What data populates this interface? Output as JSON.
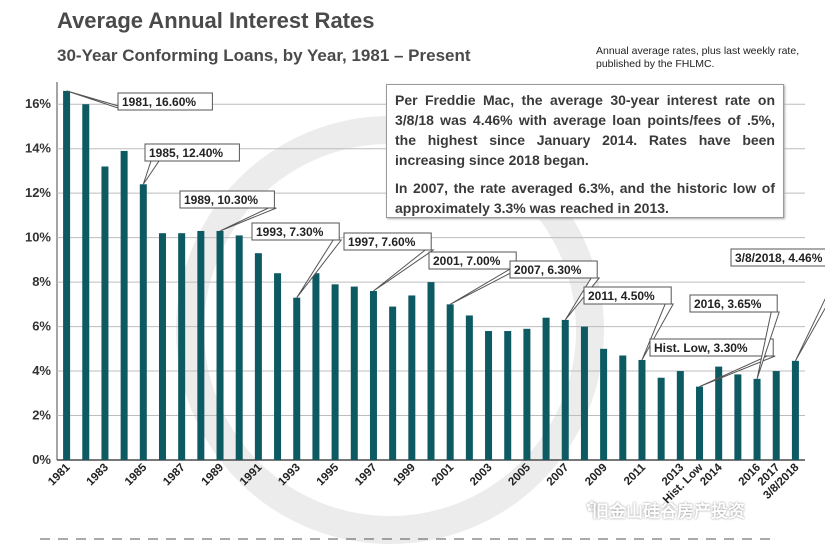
{
  "header": {
    "title": "Average Annual Interest Rates",
    "subtitle": "30-Year Conforming Loans, by Year, 1981 – Present",
    "note": "Annual average rates, plus last weekly rate, published by the FHLMC."
  },
  "info_box": {
    "para1": "Per Freddie Mac, the average 30-year interest rate on 3/8/18 was 4.46% with average loan points/fees of .5%, the highest since January 2014. Rates have been increasing since 2018 began.",
    "para2": "In 2007, the rate averaged 6.3%, and the historic low of approximately 3.3% was reached in 2013."
  },
  "watermark": "旧金山硅谷房产投资",
  "colors": {
    "bar": "#0d5a63",
    "bar_highlight": "#2f8d96",
    "grid": "#bdbdbd",
    "callout_border": "#555555"
  },
  "chart_data": {
    "type": "bar",
    "title": "Average Annual Interest Rates",
    "subtitle": "30-Year Conforming Loans, by Year, 1981 – Present",
    "xlabel": "",
    "ylabel": "",
    "ylim": [
      0,
      17
    ],
    "yticks": [
      "0%",
      "2%",
      "4%",
      "6%",
      "8%",
      "10%",
      "12%",
      "14%",
      "16%"
    ],
    "grid": true,
    "categories": [
      "1981",
      "1982",
      "1983",
      "1984",
      "1985",
      "1986",
      "1987",
      "1988",
      "1989",
      "1990",
      "1991",
      "1992",
      "1993",
      "1994",
      "1995",
      "1996",
      "1997",
      "1998",
      "1999",
      "2000",
      "2001",
      "2002",
      "2003",
      "2004",
      "2005",
      "2006",
      "2007",
      "2008",
      "2009",
      "2010",
      "2011",
      "2012",
      "2013",
      "Hist. Low",
      "2014",
      "2015",
      "2016",
      "2017",
      "3/8/2018"
    ],
    "xtick_labels": [
      "1981",
      "",
      "1983",
      "",
      "1985",
      "",
      "1987",
      "",
      "1989",
      "",
      "1991",
      "",
      "1993",
      "",
      "1995",
      "",
      "1997",
      "",
      "1999",
      "",
      "2001",
      "",
      "2003",
      "",
      "2005",
      "",
      "2007",
      "",
      "2009",
      "",
      "2011",
      "",
      "2013",
      "Hist. Low",
      "2014",
      "",
      "2016",
      "2017",
      "3/8/2018"
    ],
    "values": [
      16.6,
      16.0,
      13.2,
      13.9,
      12.4,
      10.2,
      10.2,
      10.3,
      10.3,
      10.1,
      9.3,
      8.4,
      7.3,
      8.4,
      7.9,
      7.8,
      7.6,
      6.9,
      7.4,
      8.0,
      7.0,
      6.5,
      5.8,
      5.8,
      5.9,
      6.4,
      6.3,
      6.0,
      5.0,
      4.7,
      4.5,
      3.7,
      4.0,
      3.3,
      4.2,
      3.85,
      3.65,
      4.0,
      4.46
    ],
    "callouts": [
      {
        "label": "1981, 16.60%",
        "index": 0
      },
      {
        "label": "1985, 12.40%",
        "index": 4
      },
      {
        "label": "1989, 10.30%",
        "index": 8
      },
      {
        "label": "1993, 7.30%",
        "index": 12
      },
      {
        "label": "1997, 7.60%",
        "index": 16
      },
      {
        "label": "2001, 7.00%",
        "index": 20
      },
      {
        "label": "2007, 6.30%",
        "index": 26
      },
      {
        "label": "2011, 4.50%",
        "index": 30
      },
      {
        "label": "Hist. Low, 3.30%",
        "index": 33
      },
      {
        "label": "2016, 3.65%",
        "index": 36
      },
      {
        "label": "3/8/2018, 4.46%",
        "index": 38
      }
    ]
  }
}
